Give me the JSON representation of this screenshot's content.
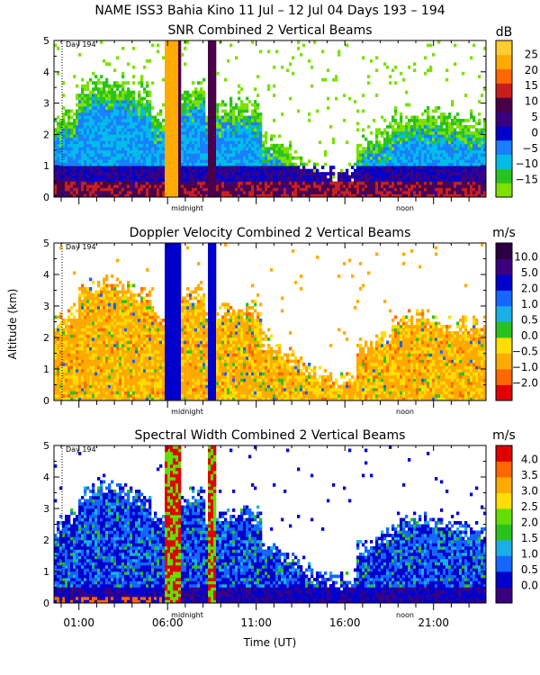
{
  "header": {
    "title": "NAME ISS3 Bahia Kino   11 Jul – 12 Jul 04 Days 193 – 194"
  },
  "colors": {
    "snr": [
      "#7CE000",
      "#2AC21E",
      "#00BDE8",
      "#1A7FFF",
      "#0000CC",
      "#3A0080",
      "#4A0048",
      "#C81E1E",
      "#FF6600",
      "#FFAA00",
      "#FFCC33"
    ],
    "dop": [
      "#E00000",
      "#FF6600",
      "#FFAA00",
      "#FFDD00",
      "#2AC21E",
      "#1AAFE8",
      "#1466FF",
      "#0000CC",
      "#3A0080",
      "#2A0040"
    ],
    "width": [
      "#3A0080",
      "#0000CC",
      "#1466FF",
      "#1AAFE8",
      "#2AC21E",
      "#66DD00",
      "#FFDD00",
      "#FFAA00",
      "#FF6600",
      "#E00000"
    ]
  },
  "chart_data": [
    {
      "type": "heatmap",
      "id": "snr",
      "title": "SNR Combined 2 Vertical Beams",
      "ylabel": "",
      "xlabel": "",
      "ylim": [
        0,
        5
      ],
      "y_ticks": [
        "0",
        "1",
        "2",
        "3",
        "4",
        "5"
      ],
      "annotation": "Day 194",
      "x_markers": [
        "midnight",
        "noon"
      ],
      "colorbar": {
        "unit": "dB",
        "labels": [
          "25",
          "20",
          "15",
          "10",
          "5",
          "0",
          "−5",
          "−10",
          "−15"
        ]
      }
    },
    {
      "type": "heatmap",
      "id": "doppler",
      "title": "Doppler Velocity Combined 2 Vertical Beams",
      "ylabel": "Altitude (km)",
      "xlabel": "",
      "ylim": [
        0,
        5
      ],
      "y_ticks": [
        "0",
        "1",
        "2",
        "3",
        "4",
        "5"
      ],
      "annotation": "Day 194",
      "x_markers": [
        "midnight",
        "noon"
      ],
      "colorbar": {
        "unit": "m/s",
        "labels": [
          "10.0",
          "5.0",
          "2.0",
          "1.0",
          "0.5",
          "0.0",
          "−0.5",
          "−1.0",
          "−2.0"
        ]
      }
    },
    {
      "type": "heatmap",
      "id": "width",
      "title": "Spectral Width Combined 2 Vertical Beams",
      "ylabel": "",
      "xlabel": "Time (UT)",
      "ylim": [
        0,
        5
      ],
      "y_ticks": [
        "0",
        "1",
        "2",
        "3",
        "4",
        "5"
      ],
      "x_tick_labels": [
        "01:00",
        "06:00",
        "11:00",
        "16:00",
        "21:00"
      ],
      "annotation": "Day 194",
      "x_markers": [
        "midnight",
        "noon"
      ],
      "colorbar": {
        "unit": "m/s",
        "labels": [
          "4.0",
          "3.5",
          "3.0",
          "2.5",
          "2.0",
          "1.5",
          "1.0",
          "0.5",
          "0.0"
        ]
      }
    }
  ]
}
